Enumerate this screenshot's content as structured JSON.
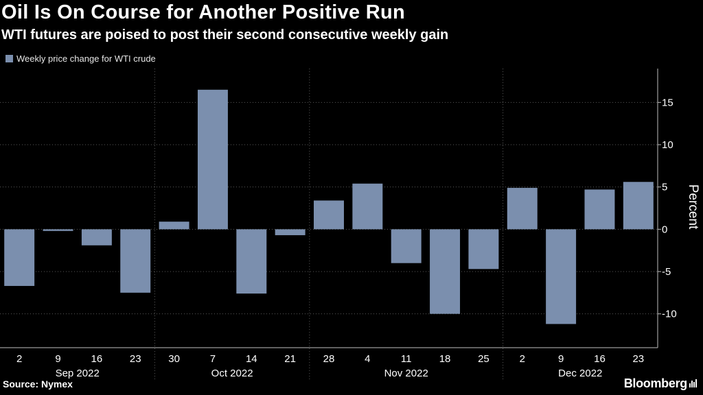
{
  "header": {
    "title": "Oil Is On Course for Another Positive Run",
    "subtitle": "WTI futures are poised to post their second consecutive weekly gain"
  },
  "footer": {
    "source": "Source: Nymex",
    "brand": "Bloomberg"
  },
  "colors": {
    "bar": "#7b8fae",
    "background": "#000000",
    "text": "#ffffff",
    "grid": "#5a5a5a"
  },
  "chart_data": {
    "type": "bar",
    "categories": [
      "2",
      "9",
      "16",
      "23",
      "30",
      "7",
      "14",
      "21",
      "28",
      "4",
      "11",
      "18",
      "25",
      "2",
      "9",
      "16",
      "23"
    ],
    "series": [
      {
        "name": "Weekly price change for WTI crude",
        "values": [
          -6.7,
          -0.2,
          -1.9,
          -7.5,
          0.9,
          16.5,
          -7.6,
          -0.7,
          3.4,
          5.4,
          -4.0,
          -10.0,
          -4.7,
          4.9,
          -11.2,
          4.7,
          5.6
        ]
      }
    ],
    "months": [
      {
        "label": "Sep 2022",
        "start": 0,
        "end": 3
      },
      {
        "label": "Oct 2022",
        "start": 4,
        "end": 7
      },
      {
        "label": "Nov 2022",
        "start": 8,
        "end": 12
      },
      {
        "label": "Dec 2022",
        "start": 13,
        "end": 16
      }
    ],
    "ylabel": "Percent",
    "yticks": [
      15,
      10,
      5,
      0,
      -5,
      -10
    ],
    "ytick_labels": [
      "15",
      "10",
      "5",
      "0",
      "-5",
      "-10"
    ],
    "ylim": [
      -14,
      19
    ],
    "grid": "horizontal dotted and month separators",
    "legend_position": "top-left"
  }
}
